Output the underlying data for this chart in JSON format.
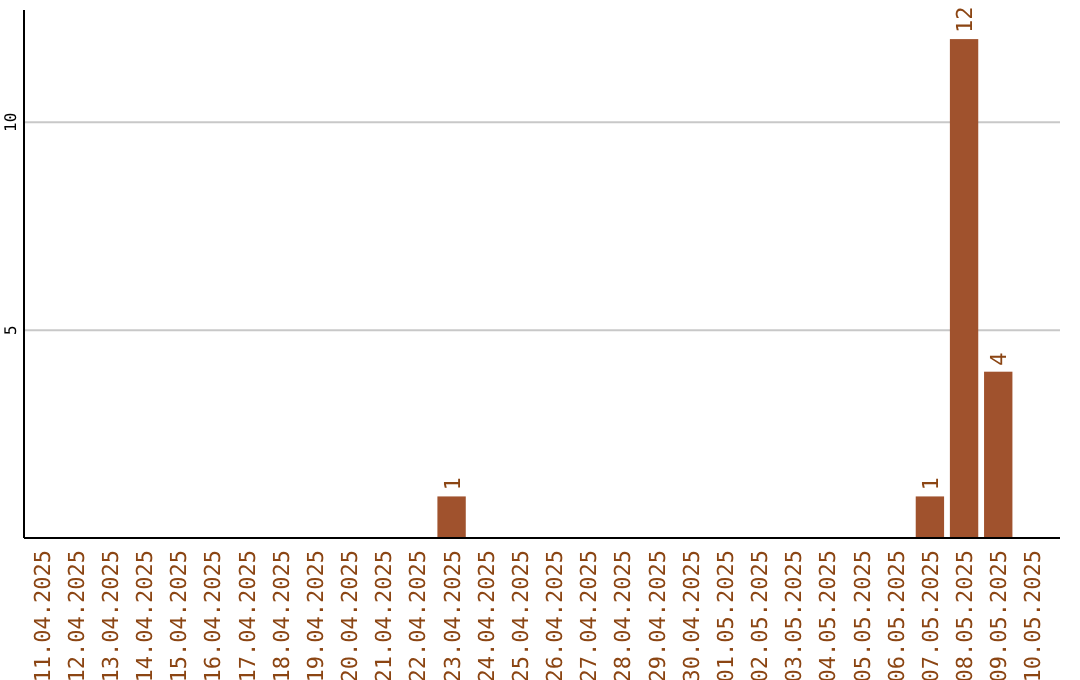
{
  "chart_data": {
    "type": "bar",
    "categories": [
      "11.04.2025",
      "12.04.2025",
      "13.04.2025",
      "14.04.2025",
      "15.04.2025",
      "16.04.2025",
      "17.04.2025",
      "18.04.2025",
      "19.04.2025",
      "20.04.2025",
      "21.04.2025",
      "22.04.2025",
      "23.04.2025",
      "24.04.2025",
      "25.04.2025",
      "26.04.2025",
      "27.04.2025",
      "28.04.2025",
      "29.04.2025",
      "30.04.2025",
      "01.05.2025",
      "02.05.2025",
      "03.05.2025",
      "04.05.2025",
      "05.05.2025",
      "06.05.2025",
      "07.05.2025",
      "08.05.2025",
      "09.05.2025",
      "10.05.2025"
    ],
    "values": [
      0,
      0,
      0,
      0,
      0,
      0,
      0,
      0,
      0,
      0,
      0,
      0,
      1,
      0,
      0,
      0,
      0,
      0,
      0,
      0,
      0,
      0,
      0,
      0,
      0,
      0,
      1,
      12,
      4,
      0
    ],
    "value_labels": [
      null,
      null,
      null,
      null,
      null,
      null,
      null,
      null,
      null,
      null,
      null,
      null,
      "1",
      null,
      null,
      null,
      null,
      null,
      null,
      null,
      null,
      null,
      null,
      null,
      null,
      null,
      "1",
      "12",
      "4",
      null
    ],
    "color": "#a0522d",
    "ylim": [
      0,
      12.7
    ],
    "yticks": [
      5,
      10
    ],
    "grid": "y"
  }
}
